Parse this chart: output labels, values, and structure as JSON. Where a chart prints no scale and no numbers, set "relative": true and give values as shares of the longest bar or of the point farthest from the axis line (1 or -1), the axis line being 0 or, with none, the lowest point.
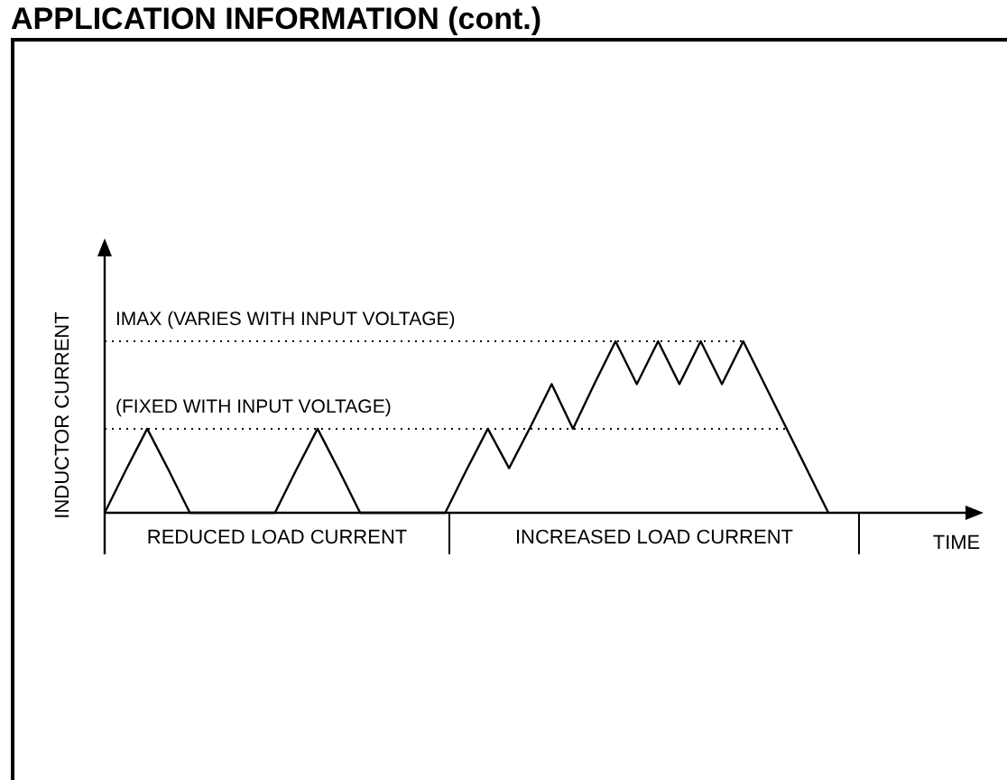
{
  "chart_data": {
    "type": "line",
    "title": "APPLICATION INFORMATION (cont.)",
    "xlabel": "TIME",
    "ylabel": "INDUCTOR CURRENT",
    "relative": true,
    "marker": "none",
    "line_style": "solid",
    "categories": [
      null,
      null,
      null,
      null,
      null,
      null,
      null,
      null,
      null,
      null,
      null,
      null,
      null,
      null,
      null,
      null,
      null,
      null,
      null,
      null,
      null,
      null,
      null,
      null,
      null,
      null,
      null,
      null,
      null,
      null,
      null,
      null,
      null,
      null,
      null,
      null,
      null,
      null,
      null,
      null
    ],
    "series": [
      {
        "color": "#000000",
        "values": [
          0,
          0.25,
          0.49,
          0.25,
          0,
          0,
          0,
          0,
          0,
          0.25,
          0.49,
          0.25,
          0,
          0,
          0,
          0,
          0,
          0.25,
          0.49,
          0.26,
          0.5,
          0.75,
          0.49,
          0.75,
          1,
          0.75,
          1,
          0.75,
          1,
          0.75,
          1,
          0.75,
          0.5,
          0.25,
          0,
          null,
          null,
          null,
          null,
          null
        ]
      }
    ],
    "ref_lines": [
      {
        "axis": "y",
        "value": 1,
        "label": "IMAX (VARIES WITH INPUT VOLTAGE)",
        "line_style": "dotted"
      },
      {
        "axis": "y",
        "value": 0.49,
        "label": "(FIXED WITH INPUT VOLTAGE)",
        "line_style": "dotted"
      }
    ],
    "annotations": [
      "REDUCED LOAD CURRENT",
      "INCREASED LOAD CURRENT"
    ]
  }
}
